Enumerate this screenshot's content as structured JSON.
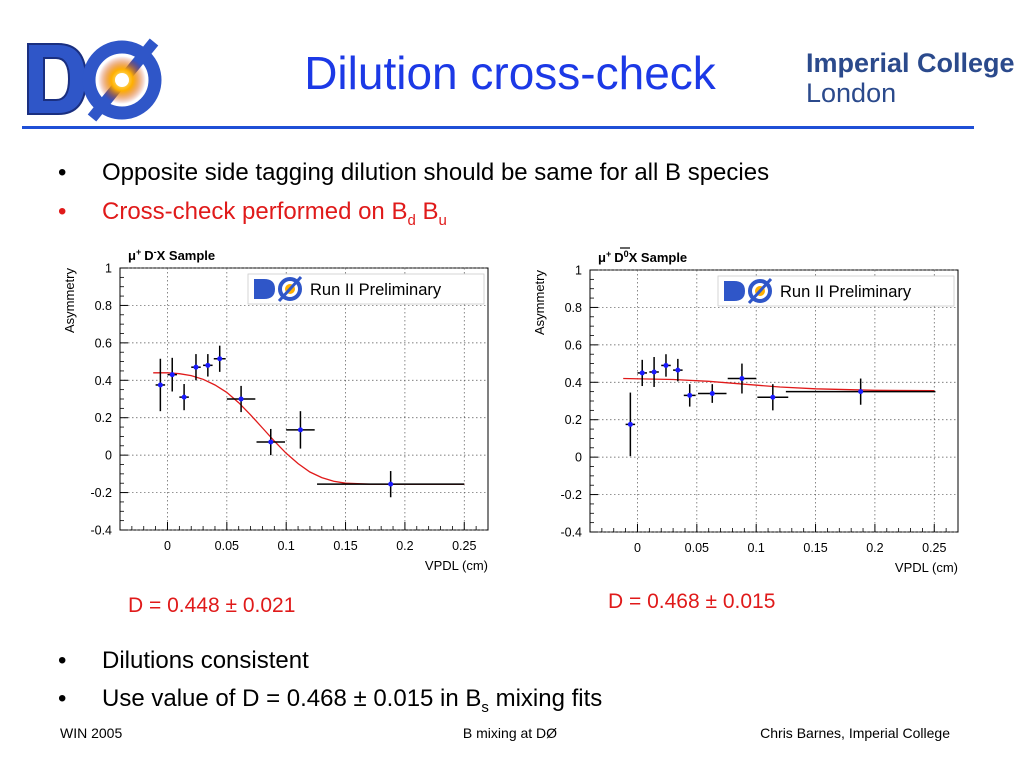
{
  "slide": {
    "title": "Dilution cross-check",
    "logo_left_text": "DØ",
    "logo_right_line1": "Imperial College",
    "logo_right_line2": "London",
    "bullets_top": [
      {
        "text": "Opposite side tagging dilution should be same for all B species",
        "color": "#000000"
      },
      {
        "text_main": "Cross-check performed on B",
        "sub1": "d",
        "mid": " B",
        "sub2": "u",
        "color": "#e01a1a"
      }
    ],
    "bullets_bottom": [
      {
        "text": "Dilutions consistent"
      },
      {
        "text_main": "Use value of D = 0.468 ± 0.015 in B",
        "sub": "s",
        "text_end": " mixing fits"
      }
    ],
    "bullet_char": "•",
    "footer": {
      "left": "WIN 2005",
      "middle": "B mixing at DØ",
      "right": "Chris Barnes, Imperial College"
    }
  },
  "chart_data": [
    {
      "type": "scatter",
      "title": "μ⁺ D⁻X Sample",
      "title_parts": {
        "mu": "μ",
        "mu_sup": "+",
        "d": "D",
        "d_sup": "-",
        "rest": "X Sample"
      },
      "badge_logo": "DØ",
      "badge_text": "Run II Preliminary",
      "xlabel": "VPDL (cm)",
      "ylabel": "Asymmetry",
      "xlim": [
        -0.04,
        0.27
      ],
      "ylim": [
        -0.4,
        1.0
      ],
      "xticks": [
        0,
        0.05,
        0.1,
        0.15,
        0.2,
        0.25
      ],
      "xtick_labels": [
        "0",
        "0.05",
        "0.1",
        "0.15",
        "0.2",
        "0.25"
      ],
      "yticks": [
        -0.4,
        -0.2,
        0,
        0.2,
        0.4,
        0.6,
        0.8,
        1
      ],
      "ytick_labels": [
        "-0.4",
        "-0.2",
        "0",
        "0.2",
        "0.4",
        "0.6",
        "0.8",
        "1"
      ],
      "grid": true,
      "points": [
        {
          "x": -0.006,
          "y": 0.375,
          "xerr": 0.004,
          "yerr": 0.14
        },
        {
          "x": 0.004,
          "y": 0.43,
          "xerr": 0.004,
          "yerr": 0.09
        },
        {
          "x": 0.014,
          "y": 0.31,
          "xerr": 0.004,
          "yerr": 0.07
        },
        {
          "x": 0.024,
          "y": 0.47,
          "xerr": 0.004,
          "yerr": 0.07
        },
        {
          "x": 0.034,
          "y": 0.48,
          "xerr": 0.004,
          "yerr": 0.06
        },
        {
          "x": 0.044,
          "y": 0.515,
          "xerr": 0.005,
          "yerr": 0.07
        },
        {
          "x": 0.062,
          "y": 0.3,
          "xerr": 0.012,
          "yerr": 0.07
        },
        {
          "x": 0.087,
          "y": 0.07,
          "xerr": 0.012,
          "yerr": 0.07
        },
        {
          "x": 0.112,
          "y": 0.135,
          "xerr": 0.012,
          "yerr": 0.1
        },
        {
          "x": 0.188,
          "y": -0.155,
          "xerr": 0.062,
          "yerr": 0.07
        }
      ],
      "fit_curve": [
        [
          -0.012,
          0.44
        ],
        [
          0.0,
          0.44
        ],
        [
          0.01,
          0.435
        ],
        [
          0.02,
          0.425
        ],
        [
          0.03,
          0.405
        ],
        [
          0.04,
          0.375
        ],
        [
          0.05,
          0.335
        ],
        [
          0.06,
          0.28
        ],
        [
          0.07,
          0.215
        ],
        [
          0.08,
          0.145
        ],
        [
          0.09,
          0.075
        ],
        [
          0.1,
          0.01
        ],
        [
          0.11,
          -0.045
        ],
        [
          0.12,
          -0.09
        ],
        [
          0.13,
          -0.12
        ],
        [
          0.14,
          -0.14
        ],
        [
          0.15,
          -0.15
        ],
        [
          0.17,
          -0.155
        ],
        [
          0.25,
          -0.155
        ]
      ],
      "point_color": "#1a1aff",
      "fit_color": "#e01a1a",
      "dilution_label": "D = 0.448 ± 0.021"
    },
    {
      "type": "scatter",
      "title": "μ⁺ D̄⁰X Sample",
      "title_parts": {
        "mu": "μ",
        "mu_sup": "+",
        "d": "D",
        "d_sup": "0",
        "rest": "X Sample"
      },
      "badge_logo": "DØ",
      "badge_text": "Run II Preliminary",
      "xlabel": "VPDL (cm)",
      "ylabel": "Asymmetry",
      "xlim": [
        -0.04,
        0.27
      ],
      "ylim": [
        -0.4,
        1.0
      ],
      "xticks": [
        0,
        0.05,
        0.1,
        0.15,
        0.2,
        0.25
      ],
      "xtick_labels": [
        "0",
        "0.05",
        "0.1",
        "0.15",
        "0.2",
        "0.25"
      ],
      "yticks": [
        -0.4,
        -0.2,
        0,
        0.2,
        0.4,
        0.6,
        0.8,
        1
      ],
      "ytick_labels": [
        "-0.4",
        "-0.2",
        "0",
        "0.2",
        "0.4",
        "0.6",
        "0.8",
        "1"
      ],
      "grid": true,
      "points": [
        {
          "x": -0.006,
          "y": 0.175,
          "xerr": 0.004,
          "yerr": 0.17
        },
        {
          "x": 0.004,
          "y": 0.45,
          "xerr": 0.004,
          "yerr": 0.07
        },
        {
          "x": 0.014,
          "y": 0.455,
          "xerr": 0.004,
          "yerr": 0.08
        },
        {
          "x": 0.024,
          "y": 0.49,
          "xerr": 0.004,
          "yerr": 0.06
        },
        {
          "x": 0.034,
          "y": 0.465,
          "xerr": 0.004,
          "yerr": 0.06
        },
        {
          "x": 0.044,
          "y": 0.33,
          "xerr": 0.005,
          "yerr": 0.06
        },
        {
          "x": 0.063,
          "y": 0.34,
          "xerr": 0.012,
          "yerr": 0.05
        },
        {
          "x": 0.088,
          "y": 0.42,
          "xerr": 0.012,
          "yerr": 0.08
        },
        {
          "x": 0.114,
          "y": 0.32,
          "xerr": 0.013,
          "yerr": 0.07
        },
        {
          "x": 0.188,
          "y": 0.35,
          "xerr": 0.063,
          "yerr": 0.07
        }
      ],
      "fit_curve": [
        [
          -0.012,
          0.42
        ],
        [
          0.03,
          0.415
        ],
        [
          0.06,
          0.405
        ],
        [
          0.09,
          0.39
        ],
        [
          0.12,
          0.375
        ],
        [
          0.15,
          0.365
        ],
        [
          0.2,
          0.357
        ],
        [
          0.25,
          0.355
        ]
      ],
      "point_color": "#1a1aff",
      "fit_color": "#e01a1a",
      "dilution_label": "D = 0.468 ± 0.015"
    }
  ]
}
